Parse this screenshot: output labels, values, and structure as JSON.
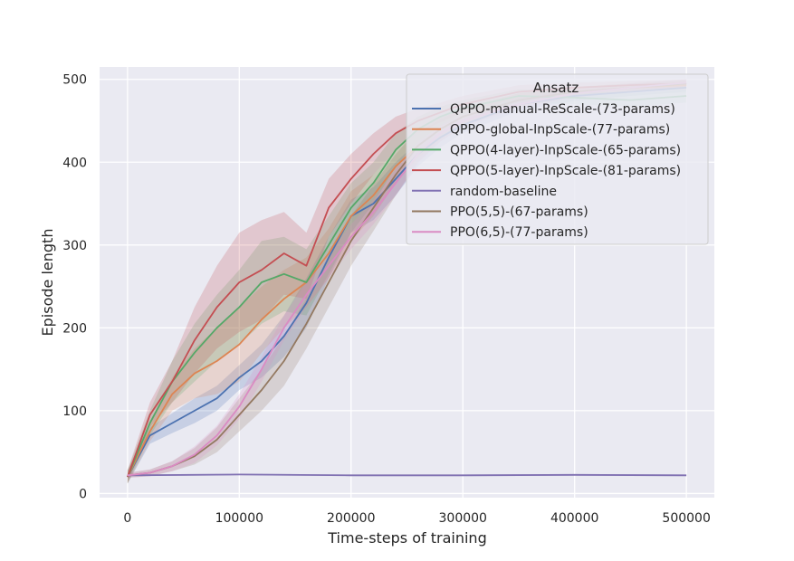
{
  "chart_data": {
    "type": "line",
    "title": "",
    "xlabel": "Time-steps of training",
    "ylabel": "Episode length",
    "xlim": [
      -25000,
      525000
    ],
    "ylim": [
      -5,
      515
    ],
    "xticks": [
      0,
      100000,
      200000,
      300000,
      400000,
      500000
    ],
    "yticks": [
      0,
      100,
      200,
      300,
      400,
      500
    ],
    "grid": true,
    "legend": {
      "title": "Ansatz",
      "position": "top-right"
    },
    "series": [
      {
        "name": "QPPO-manual-ReScale-(73-params)",
        "color": "#4c72b0",
        "x": [
          0,
          20000,
          40000,
          60000,
          80000,
          100000,
          120000,
          140000,
          160000,
          180000,
          200000,
          220000,
          240000,
          260000,
          280000,
          300000,
          350000,
          400000,
          450000,
          500000
        ],
        "y": [
          20,
          70,
          85,
          100,
          115,
          140,
          160,
          190,
          230,
          285,
          335,
          350,
          380,
          410,
          430,
          445,
          470,
          480,
          485,
          490
        ],
        "band": [
          8,
          10,
          12,
          15,
          15,
          15,
          20,
          25,
          30,
          25,
          20,
          20,
          20,
          15,
          12,
          10,
          8,
          6,
          5,
          5
        ]
      },
      {
        "name": "QPPO-global-InpScale-(77-params)",
        "color": "#dd8452",
        "x": [
          0,
          20000,
          40000,
          60000,
          80000,
          100000,
          120000,
          140000,
          160000,
          180000,
          200000,
          220000,
          240000,
          260000,
          280000,
          300000,
          350000,
          400000,
          450000,
          500000
        ],
        "y": [
          20,
          75,
          120,
          145,
          160,
          180,
          210,
          235,
          255,
          290,
          335,
          360,
          395,
          420,
          440,
          455,
          475,
          485,
          490,
          493
        ],
        "band": [
          8,
          12,
          20,
          30,
          40,
          45,
          40,
          35,
          30,
          30,
          30,
          25,
          20,
          15,
          12,
          10,
          8,
          6,
          5,
          5
        ]
      },
      {
        "name": "QPPO(4-layer)-InpScale-(65-params)",
        "color": "#55a868",
        "x": [
          0,
          20000,
          40000,
          60000,
          80000,
          100000,
          120000,
          140000,
          160000,
          180000,
          200000,
          220000,
          240000,
          260000,
          280000,
          300000,
          350000,
          400000,
          450000,
          500000
        ],
        "y": [
          20,
          85,
          135,
          170,
          200,
          225,
          255,
          265,
          255,
          300,
          345,
          375,
          415,
          440,
          455,
          465,
          480,
          478,
          475,
          480
        ],
        "band": [
          8,
          15,
          25,
          35,
          40,
          45,
          50,
          45,
          40,
          35,
          30,
          25,
          20,
          15,
          12,
          10,
          8,
          8,
          8,
          8
        ]
      },
      {
        "name": "QPPO(5-layer)-InpScale-(81-params)",
        "color": "#c44e52",
        "x": [
          0,
          20000,
          40000,
          60000,
          80000,
          100000,
          120000,
          140000,
          160000,
          180000,
          200000,
          220000,
          240000,
          260000,
          280000,
          300000,
          350000,
          400000,
          450000,
          500000
        ],
        "y": [
          20,
          95,
          135,
          185,
          225,
          255,
          270,
          290,
          275,
          345,
          380,
          410,
          435,
          450,
          460,
          470,
          485,
          490,
          493,
          495
        ],
        "band": [
          8,
          15,
          25,
          40,
          50,
          60,
          60,
          50,
          40,
          35,
          30,
          25,
          20,
          15,
          12,
          10,
          8,
          6,
          5,
          5
        ]
      },
      {
        "name": "random-baseline",
        "color": "#8172b3",
        "x": [
          0,
          100000,
          200000,
          300000,
          400000,
          500000
        ],
        "y": [
          22,
          23,
          22,
          22,
          22.5,
          22
        ],
        "band": [
          1,
          1,
          1,
          1,
          1,
          1
        ]
      },
      {
        "name": "PPO(5,5)-(67-params)",
        "color": "#937860",
        "x": [
          0,
          20000,
          40000,
          60000,
          80000,
          100000,
          120000,
          140000,
          160000,
          180000,
          200000,
          220000,
          240000,
          260000,
          280000,
          300000,
          350000,
          400000,
          450000,
          500000
        ],
        "y": [
          22,
          25,
          33,
          45,
          65,
          95,
          125,
          160,
          205,
          255,
          305,
          345,
          385,
          420,
          440,
          455,
          475,
          485,
          490,
          495
        ],
        "band": [
          3,
          4,
          6,
          10,
          15,
          20,
          25,
          30,
          30,
          30,
          30,
          28,
          25,
          20,
          15,
          12,
          8,
          6,
          5,
          5
        ]
      },
      {
        "name": "PPO(6,5)-(77-params)",
        "color": "#da8bc3",
        "x": [
          0,
          20000,
          40000,
          60000,
          80000,
          100000,
          120000,
          140000,
          160000,
          180000,
          200000,
          220000,
          240000,
          260000,
          280000,
          300000,
          350000,
          400000,
          450000,
          500000
        ],
        "y": [
          22,
          25,
          33,
          47,
          70,
          105,
          150,
          200,
          240,
          275,
          310,
          340,
          375,
          410,
          435,
          450,
          470,
          483,
          490,
          496
        ],
        "band": [
          3,
          4,
          6,
          10,
          12,
          15,
          15,
          15,
          15,
          15,
          15,
          15,
          15,
          12,
          10,
          8,
          6,
          5,
          5,
          4
        ]
      }
    ]
  }
}
